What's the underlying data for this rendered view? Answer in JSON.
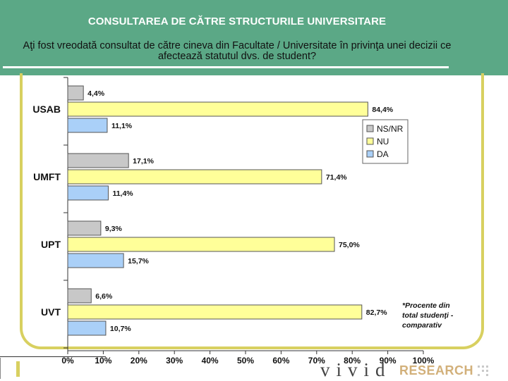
{
  "header": {
    "title": "CONSULTAREA DE CĂTRE STRUCTURILE UNIVERSITARE",
    "question": "Aţi fost vreodată consultat de către cineva din Facultate / Universitate în privinţa unei decizii ce afectează statutul dvs. de student?"
  },
  "colors": {
    "header_bg": "#5ba886",
    "frame": "#d8d060",
    "ns_nr": "#c8c8c8",
    "nu": "#ffff99",
    "da": "#aad0f8"
  },
  "chart_data": {
    "type": "bar",
    "orientation": "horizontal",
    "categories": [
      "USAB",
      "UMFT",
      "UPT",
      "UVT"
    ],
    "series": [
      {
        "name": "NS/NR",
        "values": [
          4.4,
          17.1,
          9.3,
          6.6
        ],
        "labels": [
          "4,4%",
          "17,1%",
          "9,3%",
          "6,6%"
        ]
      },
      {
        "name": "NU",
        "values": [
          84.4,
          71.4,
          75.0,
          82.7
        ],
        "labels": [
          "84,4%",
          "71,4%",
          "75,0%",
          "82,7%"
        ]
      },
      {
        "name": "DA",
        "values": [
          11.1,
          11.4,
          15.7,
          10.7
        ],
        "labels": [
          "11,1%",
          "11,4%",
          "15,7%",
          "10,7%"
        ]
      }
    ],
    "xlim": [
      0,
      100
    ],
    "x_ticks": [
      "0%",
      "10%",
      "20%",
      "30%",
      "40%",
      "50%",
      "60%",
      "70%",
      "80%",
      "90%",
      "100%"
    ],
    "legend": [
      "NS/NR",
      "NU",
      "DA"
    ],
    "legend_position": "right",
    "annotation": "*Procente din total studenţi - comparativ",
    "grid": false
  },
  "footer": {
    "brand": "vivid",
    "brand_suffix": "RESEARCH"
  }
}
